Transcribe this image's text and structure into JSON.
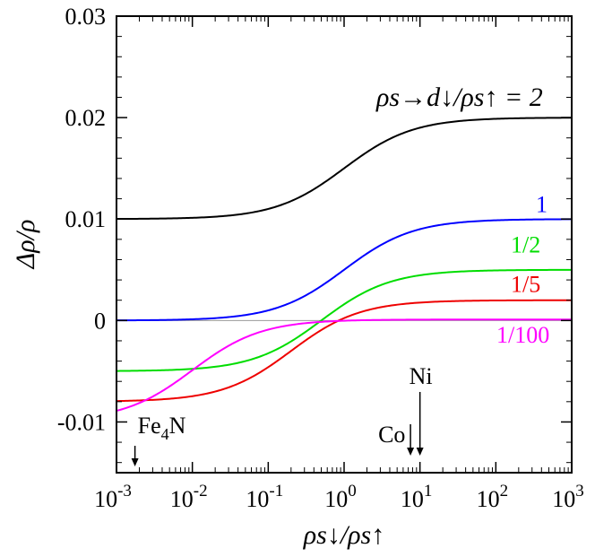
{
  "chart_data": {
    "type": "line",
    "title": "",
    "xlabel": "ρs↓/ρs↑",
    "ylabel": "Δρ/ρ",
    "xscale": "log",
    "xlim": [
      0.001,
      1000
    ],
    "ylim": [
      -0.015,
      0.03
    ],
    "x_ticks": [
      {
        "value": 0.001,
        "base": "10",
        "exp": "-3"
      },
      {
        "value": 0.01,
        "base": "10",
        "exp": "-2"
      },
      {
        "value": 0.1,
        "base": "10",
        "exp": "-1"
      },
      {
        "value": 1,
        "base": "10",
        "exp": "0"
      },
      {
        "value": 10,
        "base": "10",
        "exp": "1"
      },
      {
        "value": 100,
        "base": "10",
        "exp": "2"
      },
      {
        "value": 1000,
        "base": "10",
        "exp": "3"
      }
    ],
    "y_ticks": [
      {
        "value": 0.03,
        "label": "0.03"
      },
      {
        "value": 0.02,
        "label": "0.02"
      },
      {
        "value": 0.01,
        "label": "0.01"
      },
      {
        "value": 0,
        "label": "0"
      },
      {
        "value": -0.01,
        "label": "-0.01"
      }
    ],
    "legend_title": "ρs→d↓/ρs↑ = 2",
    "series": [
      {
        "name": "2",
        "label": "",
        "color": "#000000",
        "low": 0.01,
        "high": 0.02,
        "mid": 1.0,
        "width": 1.0
      },
      {
        "name": "1",
        "label": "1",
        "color": "#0000ff",
        "low": 0.0,
        "high": 0.01,
        "mid": 1.0,
        "width": 1.0
      },
      {
        "name": "1/2",
        "label": "1/2",
        "color": "#00dd00",
        "low": -0.005,
        "high": 0.005,
        "mid": 0.5,
        "width": 1.0
      },
      {
        "name": "1/5",
        "label": "1/5",
        "color": "#ee0000",
        "low": -0.008,
        "high": 0.002,
        "mid": 0.2,
        "width": 1.0
      },
      {
        "name": "1/100",
        "label": "1/100",
        "color": "#ff00ff",
        "low": -0.0099,
        "high": 0.0001,
        "mid": 0.01,
        "width": 1.0
      }
    ],
    "annotations": [
      {
        "text": "Fe",
        "sub": "4",
        "tail": "N",
        "x": 0.0018
      },
      {
        "text": "Co",
        "sub": "",
        "tail": "",
        "x": 7.5
      },
      {
        "text": "Ni",
        "sub": "",
        "tail": "",
        "x": 10
      }
    ],
    "zero_line": true
  }
}
